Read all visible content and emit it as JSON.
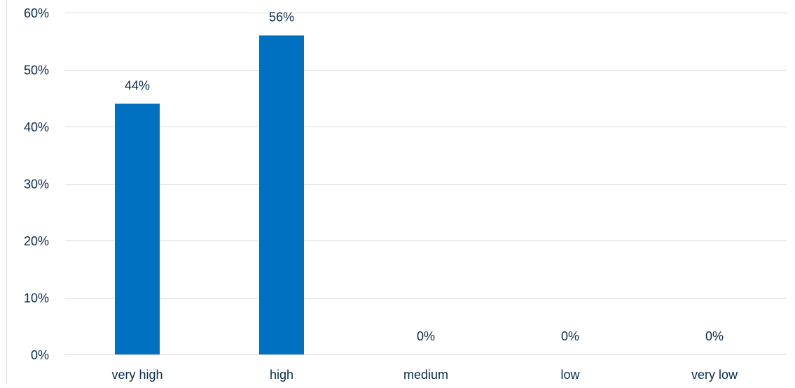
{
  "colors": {
    "bar": "#0070C0",
    "grid": "#D9D9D9",
    "text": "#0B2A4A",
    "left_border": "#D9DEE7"
  },
  "chart_data": {
    "type": "bar",
    "categories": [
      "very high",
      "high",
      "medium",
      "low",
      "very low"
    ],
    "values": [
      44,
      56,
      0,
      0,
      0
    ],
    "data_labels": [
      "44%",
      "56%",
      "0%",
      "0%",
      "0%"
    ],
    "ylim": [
      0,
      60
    ],
    "yticks": [
      0,
      10,
      20,
      30,
      40,
      50,
      60
    ],
    "ytick_labels": [
      "0%",
      "10%",
      "20%",
      "30%",
      "40%",
      "50%",
      "60%"
    ],
    "title": "",
    "xlabel": "",
    "ylabel": "",
    "grid": true,
    "legend": "none"
  }
}
